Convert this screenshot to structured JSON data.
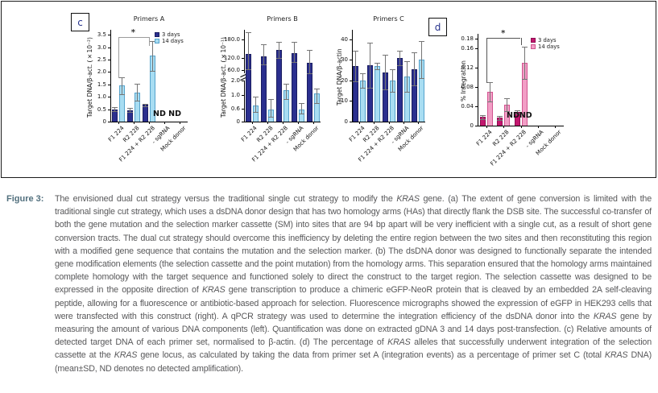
{
  "panel_letters": {
    "c": "c",
    "d": "d"
  },
  "colors": {
    "days3_blue": "#2b2f8e",
    "days14_blue": "#a8ddf2",
    "days3_pink": "#c2176e",
    "days14_pink": "#f29ec6",
    "error_bar": "#757575",
    "axis": "#000000",
    "caption_label": "#52707e",
    "caption_text": "#58585a"
  },
  "chart_data": [
    {
      "id": "primers-a",
      "type": "bar",
      "title": "Primers A",
      "ylabel": "Target DNA/β-act. (×10⁻²)",
      "categories": [
        "F1 224",
        "R2 228",
        "F1 224 + R2 228",
        "- sgRNA",
        "Mock donor"
      ],
      "ytick_values": [
        0,
        0.5,
        1.0,
        1.5,
        2.0,
        2.5,
        3.0,
        3.5
      ],
      "ytick_labels": [
        "0",
        "0.5",
        "1.0",
        "1.5",
        "2.0",
        "2.5",
        "3.0",
        "3.5"
      ],
      "ylim": [
        0,
        3.57
      ],
      "scale": [
        {
          "from": 0,
          "to": 3.5,
          "f0": 0,
          "f1": 0.98
        }
      ],
      "series": [
        {
          "name": "3 days",
          "color": "#2b2f8e",
          "edge": "#1a1d60",
          "values": [
            0.5,
            0.47,
            0.68,
            null,
            null
          ],
          "errors": [
            0.08,
            0.07,
            0.05,
            null,
            null
          ]
        },
        {
          "name": "14 days",
          "color": "#a8ddf2",
          "edge": "#56a3cc",
          "values": [
            1.45,
            1.18,
            2.65,
            null,
            null
          ],
          "errors": [
            0.35,
            0.33,
            0.6,
            null,
            null
          ]
        }
      ],
      "legend": {
        "show": true,
        "labels": [
          "3 days",
          "14 days"
        ]
      },
      "nd": {
        "text": "ND ND"
      },
      "sig": {
        "label": "*",
        "between": [
          0,
          2
        ]
      }
    },
    {
      "id": "primers-b",
      "type": "bar",
      "title": "Primers B",
      "ylabel": "Target DNA/β-act. (×10⁻¹)",
      "categories": [
        "F1 224",
        "R2 228",
        "F1 224 + R2 228",
        "- sgRNA",
        "Mock donor"
      ],
      "ytick_values": [
        0,
        0.6,
        1.0,
        2.0,
        60.0,
        120.0,
        180.0
      ],
      "ytick_labels": [
        "0",
        "0.6",
        "1.0",
        "2.0",
        "60.0",
        "120.0",
        "180.0"
      ],
      "axis_break": {
        "between": [
          2.0,
          60.0
        ]
      },
      "scale": [
        {
          "from": 0,
          "to": 0.6,
          "f0": 0,
          "f1": 0.145
        },
        {
          "from": 0.6,
          "to": 1.0,
          "f0": 0.145,
          "f1": 0.3
        },
        {
          "from": 1.0,
          "to": 2.0,
          "f0": 0.3,
          "f1": 0.463
        },
        {
          "from": 2.0,
          "to": 60,
          "f0": 0.463,
          "f1": 0.582
        },
        {
          "from": 60,
          "to": 120,
          "f0": 0.582,
          "f1": 0.718
        },
        {
          "from": 120,
          "to": 200,
          "f0": 0.718,
          "f1": 1.0
        }
      ],
      "series": [
        {
          "name": "3 days",
          "color": "#2b2f8e",
          "edge": "#1a1d60",
          "values": [
            133,
            125,
            146,
            136,
            95
          ],
          "errors": [
            70,
            39,
            26,
            36,
            51
          ]
        },
        {
          "name": "14 days",
          "color": "#a8ddf2",
          "edge": "#56a3cc",
          "values": [
            0.7,
            0.55,
            1.33,
            0.56,
            1.11
          ],
          "errors": [
            0.26,
            0.33,
            0.45,
            0.2,
            0.35
          ]
        }
      ]
    },
    {
      "id": "primers-c",
      "type": "bar",
      "title": "Primers C",
      "ylabel": "Target DNA/β-actin",
      "categories": [
        "F1 224",
        "R2 228",
        "F1 224 + R2 228",
        "- sgRNA",
        "Mock donor"
      ],
      "ytick_values": [
        0,
        10,
        20,
        30,
        40
      ],
      "ytick_labels": [
        "0",
        "10",
        "20",
        "30",
        "40"
      ],
      "ylim": [
        0,
        43
      ],
      "scale": [
        {
          "from": 0,
          "to": 43,
          "f0": 0,
          "f1": 1
        }
      ],
      "series": [
        {
          "name": "3 days",
          "color": "#2b2f8e",
          "edge": "#1a1d60",
          "values": [
            27,
            27.5,
            24,
            31,
            25.5
          ],
          "errors": [
            7.5,
            11,
            8.5,
            3.5,
            8
          ]
        },
        {
          "name": "14 days",
          "color": "#a8ddf2",
          "edge": "#56a3cc",
          "values": [
            20,
            27,
            20,
            22,
            30
          ],
          "errors": [
            3.5,
            1.5,
            5.5,
            7.5,
            9
          ]
        }
      ]
    },
    {
      "id": "percent-integration",
      "type": "bar",
      "title": "",
      "ylabel": "% Integration",
      "categories": [
        "F1 224",
        "R2 228",
        "F1 224 + R2 228",
        "- sgRNA",
        "Mock donor"
      ],
      "ytick_values": [
        0,
        0.04,
        0.08,
        0.12,
        0.16,
        0.18
      ],
      "ytick_labels": [
        "0",
        "0.04",
        "0.08",
        "0.12",
        "0.16",
        "0.18"
      ],
      "ylim": [
        0,
        0.1837
      ],
      "scale": [
        {
          "from": 0,
          "to": 0.18,
          "f0": 0,
          "f1": 0.98
        }
      ],
      "series": [
        {
          "name": "3 days",
          "color": "#c2176e",
          "edge": "#8f0c52",
          "values": [
            0.018,
            0.016,
            0.028,
            null,
            null
          ],
          "errors": [
            0.004,
            0.004,
            0.003,
            null,
            null
          ]
        },
        {
          "name": "14 days",
          "color": "#f29ec6",
          "edge": "#d1538f",
          "values": [
            0.07,
            0.043,
            0.13,
            null,
            null
          ],
          "errors": [
            0.02,
            0.013,
            0.033,
            null,
            null
          ]
        }
      ],
      "legend": {
        "show": true,
        "labels": [
          "3 days",
          "14 days"
        ]
      },
      "nd": {
        "text": "NDND"
      },
      "sig": {
        "label": "*",
        "between": [
          0,
          2
        ]
      }
    }
  ],
  "caption": {
    "label": "Figure 3:",
    "segments": [
      {
        "text": "The envisioned dual cut strategy versus the traditional single cut strategy to modify the ",
        "italic": false
      },
      {
        "text": "KRAS",
        "italic": true
      },
      {
        "text": " gene. (a) The extent of gene conversion is limited with the traditional single cut strategy, which uses a dsDNA donor design that has two homology arms (HAs) that directly flank the DSB site. The successful co-transfer of both the gene mutation and the selection marker cassette (SM) into sites that are 94 bp apart will be very inefficient with a single cut, as a result of short gene conversion tracts. The dual cut strategy should overcome this inefficiency by deleting the entire region between the two sites and then reconstituting this region with a modified gene sequence that contains the mutation and the selection marker. (b) The dsDNA donor was designed to functionally separate the intended gene modification elements (the selection cassette and the point mutation) from the homology arms. This separation ensured that the homology arms maintained complete homology with the target sequence and functioned solely to direct the construct to the target region. The selection cassette was designed to be expressed in the opposite direction of ",
        "italic": false
      },
      {
        "text": "KRAS",
        "italic": true
      },
      {
        "text": " gene transcription to produce a chimeric eGFP-NeoR protein that is cleaved by an embedded 2A self-cleaving peptide, allowing for a fluorescence or antibiotic-based approach for selection. Fluorescence micrographs showed the expression of eGFP in HEK293 cells that were transfected with this construct (right). A qPCR strategy was used to determine the integration efficiency of the dsDNA donor into the ",
        "italic": false
      },
      {
        "text": "KRAS",
        "italic": true
      },
      {
        "text": " gene by measuring the amount of various DNA components (left). Quantification was done on extracted gDNA 3 and 14 days post-transfection. (c) Relative amounts of detected target DNA of each primer set, normalised to β-actin. (d) The percentage of ",
        "italic": false
      },
      {
        "text": "KRAS",
        "italic": true
      },
      {
        "text": " alleles that successfully underwent integration of the selection cassette at the ",
        "italic": false
      },
      {
        "text": "KRAS",
        "italic": true
      },
      {
        "text": " gene locus, as calculated by taking the data from primer set A (integration events) as a percentage of primer set C (total ",
        "italic": false
      },
      {
        "text": "KRAS",
        "italic": true
      },
      {
        "text": " DNA) (mean±SD, ND denotes no detected amplification).",
        "italic": false
      }
    ]
  }
}
